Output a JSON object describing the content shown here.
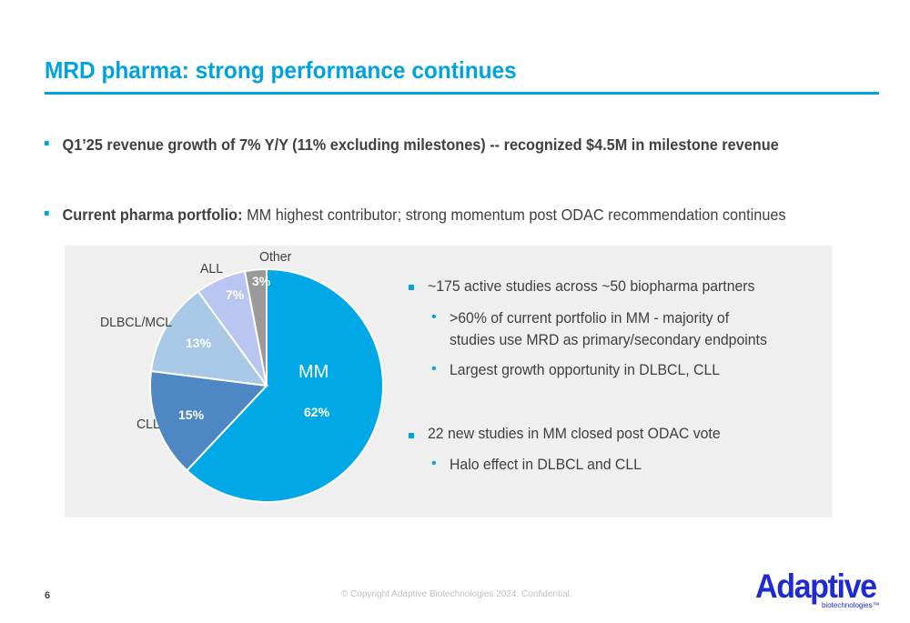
{
  "slide": {
    "title": "MRD pharma: strong performance continues",
    "bullet1": "Q1’25 revenue growth of 7% Y/Y (11% excluding milestones) -- recognized $4.5M in milestone revenue",
    "bullet2_bold": "Current pharma portfolio:",
    "bullet2_rest": " MM highest contributor; strong momentum post ODAC recommendation continues"
  },
  "right_panel": {
    "item1": "~175 active studies across ~50 biopharma partners",
    "item1_sub1_line1": ">60% of current portfolio in MM - majority of",
    "item1_sub1_line2": "studies use MRD as primary/secondary endpoints",
    "item1_sub2": "Largest growth opportunity in DLBCL, CLL",
    "item2": "22 new studies in MM closed post ODAC vote",
    "item2_sub1": "Halo effect in DLBCL and CLL",
    "bullet_dot": "•"
  },
  "chart_data": {
    "type": "pie",
    "slices": [
      {
        "label": "MM",
        "value": 62,
        "display": "62%",
        "color": "#00a9e6"
      },
      {
        "label": "CLL",
        "value": 15,
        "display": "15%",
        "color": "#4f87c5"
      },
      {
        "label": "DLBCL/MCL",
        "value": 13,
        "display": "13%",
        "color": "#a9c8e5"
      },
      {
        "label": "ALL",
        "value": 7,
        "display": "7%",
        "color": "#b9c6f2"
      },
      {
        "label": "Other",
        "value": 3,
        "display": "3%",
        "color": "#9a9a9a"
      }
    ],
    "start": "12 o'clock",
    "direction": "clockwise"
  },
  "footer": {
    "page_number": "6",
    "copyright": "© Copyright  Adaptive Biotechnologies 2024. Confidential.",
    "logo_text": "Adaptive",
    "logo_subtext": "biotechnologies™"
  }
}
